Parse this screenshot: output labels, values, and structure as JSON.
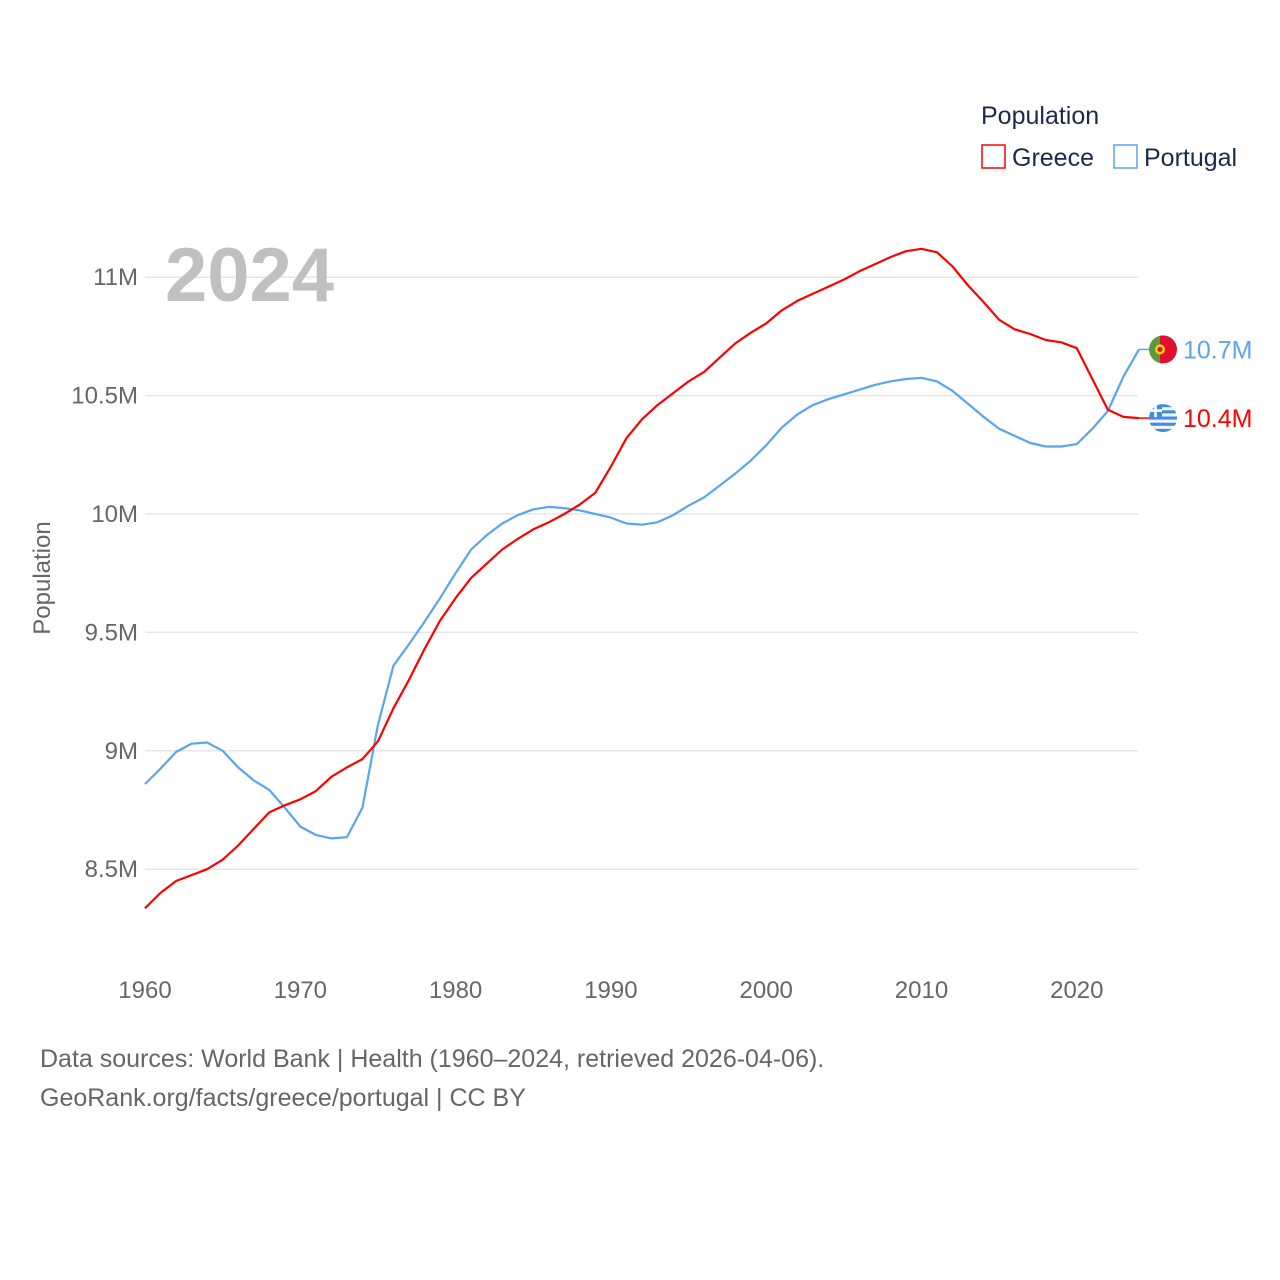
{
  "chart_data": {
    "type": "line",
    "title": "",
    "year_label": "2024",
    "xlabel": "",
    "ylabel": "Population",
    "xlim": [
      1960,
      2024
    ],
    "ylim": [
      8.2,
      11.3
    ],
    "x_ticks": [
      1960,
      1970,
      1980,
      1990,
      2000,
      2010,
      2020
    ],
    "x_tick_labels": [
      "1960",
      "1970",
      "1980",
      "1990",
      "2000",
      "2010",
      "2020"
    ],
    "y_ticks": [
      8.5,
      9,
      9.5,
      10,
      10.5,
      11
    ],
    "y_tick_labels": [
      "8.5M",
      "9M",
      "9.5M",
      "10M",
      "10.5M",
      "11M"
    ],
    "grid": true,
    "legend": {
      "title": "Population",
      "placement": "top-right"
    },
    "x": [
      1960,
      1961,
      1962,
      1963,
      1964,
      1965,
      1966,
      1967,
      1968,
      1969,
      1970,
      1971,
      1972,
      1973,
      1974,
      1975,
      1976,
      1977,
      1978,
      1979,
      1980,
      1981,
      1982,
      1983,
      1984,
      1985,
      1986,
      1987,
      1988,
      1989,
      1990,
      1991,
      1992,
      1993,
      1994,
      1995,
      1996,
      1997,
      1998,
      1999,
      2000,
      2001,
      2002,
      2003,
      2004,
      2005,
      2006,
      2007,
      2008,
      2009,
      2010,
      2011,
      2012,
      2013,
      2014,
      2015,
      2016,
      2017,
      2018,
      2019,
      2020,
      2021,
      2022,
      2023,
      2024
    ],
    "series": [
      {
        "name": "Greece",
        "color": "#ff0000",
        "end_label": "10.4M",
        "flag": "greece-flag",
        "values": [
          8.335,
          8.4,
          8.45,
          8.475,
          8.5,
          8.54,
          8.6,
          8.67,
          8.74,
          8.77,
          8.795,
          8.83,
          8.89,
          8.93,
          8.965,
          9.04,
          9.18,
          9.3,
          9.43,
          9.55,
          9.645,
          9.73,
          9.79,
          9.85,
          9.895,
          9.935,
          9.965,
          10.0,
          10.04,
          10.09,
          10.2,
          10.32,
          10.4,
          10.46,
          10.51,
          10.56,
          10.6,
          10.66,
          10.72,
          10.765,
          10.805,
          10.86,
          10.9,
          10.93,
          10.96,
          10.99,
          11.025,
          11.055,
          11.085,
          11.11,
          11.12,
          11.105,
          11.045,
          10.965,
          10.895,
          10.82,
          10.78,
          10.76,
          10.735,
          10.725,
          10.7,
          10.57,
          10.44,
          10.41,
          10.405
        ]
      },
      {
        "name": "Portugal",
        "color": "#5ba4ee",
        "end_label": "10.7M",
        "flag": "portugal-flag",
        "values": [
          8.86,
          8.925,
          8.995,
          9.03,
          9.035,
          9.0,
          8.93,
          8.875,
          8.835,
          8.76,
          8.68,
          8.645,
          8.63,
          8.635,
          8.76,
          9.11,
          9.36,
          9.45,
          9.545,
          9.645,
          9.75,
          9.85,
          9.91,
          9.96,
          9.995,
          10.02,
          10.03,
          10.025,
          10.015,
          10.0,
          9.985,
          9.96,
          9.955,
          9.965,
          9.995,
          10.035,
          10.07,
          10.12,
          10.17,
          10.225,
          10.29,
          10.365,
          10.42,
          10.46,
          10.485,
          10.505,
          10.525,
          10.545,
          10.56,
          10.57,
          10.575,
          10.56,
          10.52,
          10.465,
          10.41,
          10.36,
          10.33,
          10.3,
          10.285,
          10.285,
          10.295,
          10.36,
          10.435,
          10.58,
          10.695
        ]
      }
    ]
  },
  "footer": {
    "line1": "Data sources: World Bank | Health (1960–2024, retrieved 2026-04-06).",
    "line2": "GeoRank.org/facts/greece/portugal | CC BY"
  }
}
